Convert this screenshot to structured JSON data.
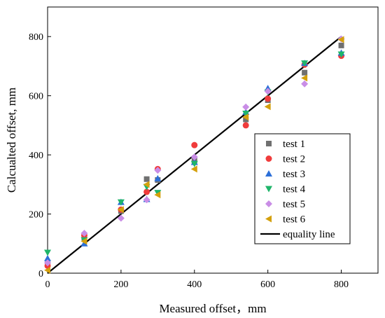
{
  "chart_data": {
    "type": "scatter",
    "xlabel": "Measured offset，mm",
    "ylabel": "Calcualted offset, mm",
    "xlim": [
      0,
      900
    ],
    "ylim": [
      0,
      900
    ],
    "xticks": [
      0,
      200,
      400,
      600,
      800
    ],
    "yticks": [
      0,
      200,
      400,
      600,
      800
    ],
    "legend_position": "right-center",
    "series": [
      {
        "name": "test 1",
        "marker": "square",
        "color": "#707070",
        "points": [
          [
            0,
            30
          ],
          [
            100,
            120
          ],
          [
            200,
            210
          ],
          [
            270,
            318
          ],
          [
            300,
            315
          ],
          [
            400,
            380
          ],
          [
            540,
            520
          ],
          [
            600,
            585
          ],
          [
            700,
            678
          ],
          [
            800,
            770
          ]
        ]
      },
      {
        "name": "test 2",
        "marker": "circle",
        "color": "#f03c3c",
        "points": [
          [
            0,
            25
          ],
          [
            100,
            128
          ],
          [
            200,
            215
          ],
          [
            270,
            275
          ],
          [
            300,
            352
          ],
          [
            400,
            433
          ],
          [
            540,
            500
          ],
          [
            600,
            590
          ],
          [
            700,
            705
          ],
          [
            800,
            735
          ]
        ]
      },
      {
        "name": "test 3",
        "marker": "triangle-up",
        "color": "#2c6fd8",
        "points": [
          [
            0,
            50
          ],
          [
            100,
            100
          ],
          [
            200,
            240
          ],
          [
            270,
            250
          ],
          [
            300,
            320
          ],
          [
            400,
            375
          ],
          [
            540,
            545
          ],
          [
            600,
            625
          ],
          [
            700,
            710
          ],
          [
            800,
            745
          ]
        ]
      },
      {
        "name": "test 4",
        "marker": "triangle-down",
        "color": "#1fb56a",
        "points": [
          [
            0,
            70
          ],
          [
            100,
            112
          ],
          [
            200,
            240
          ],
          [
            270,
            292
          ],
          [
            300,
            272
          ],
          [
            400,
            370
          ],
          [
            540,
            540
          ],
          [
            600,
            612
          ],
          [
            700,
            710
          ],
          [
            800,
            740
          ]
        ]
      },
      {
        "name": "test 5",
        "marker": "diamond",
        "color": "#c98de6",
        "points": [
          [
            0,
            35
          ],
          [
            100,
            135
          ],
          [
            200,
            186
          ],
          [
            270,
            248
          ],
          [
            300,
            348
          ],
          [
            400,
            393
          ],
          [
            540,
            562
          ],
          [
            600,
            615
          ],
          [
            700,
            640
          ],
          [
            800,
            792
          ]
        ]
      },
      {
        "name": "test 6",
        "marker": "triangle-left",
        "color": "#d4a00c",
        "points": [
          [
            0,
            10
          ],
          [
            100,
            108
          ],
          [
            200,
            215
          ],
          [
            270,
            300
          ],
          [
            300,
            265
          ],
          [
            400,
            352
          ],
          [
            540,
            528
          ],
          [
            600,
            563
          ],
          [
            700,
            660
          ],
          [
            800,
            790
          ]
        ]
      }
    ],
    "reference_line": {
      "name": "equality line",
      "color": "#000000",
      "points": [
        [
          0,
          0
        ],
        [
          800,
          800
        ]
      ]
    }
  }
}
